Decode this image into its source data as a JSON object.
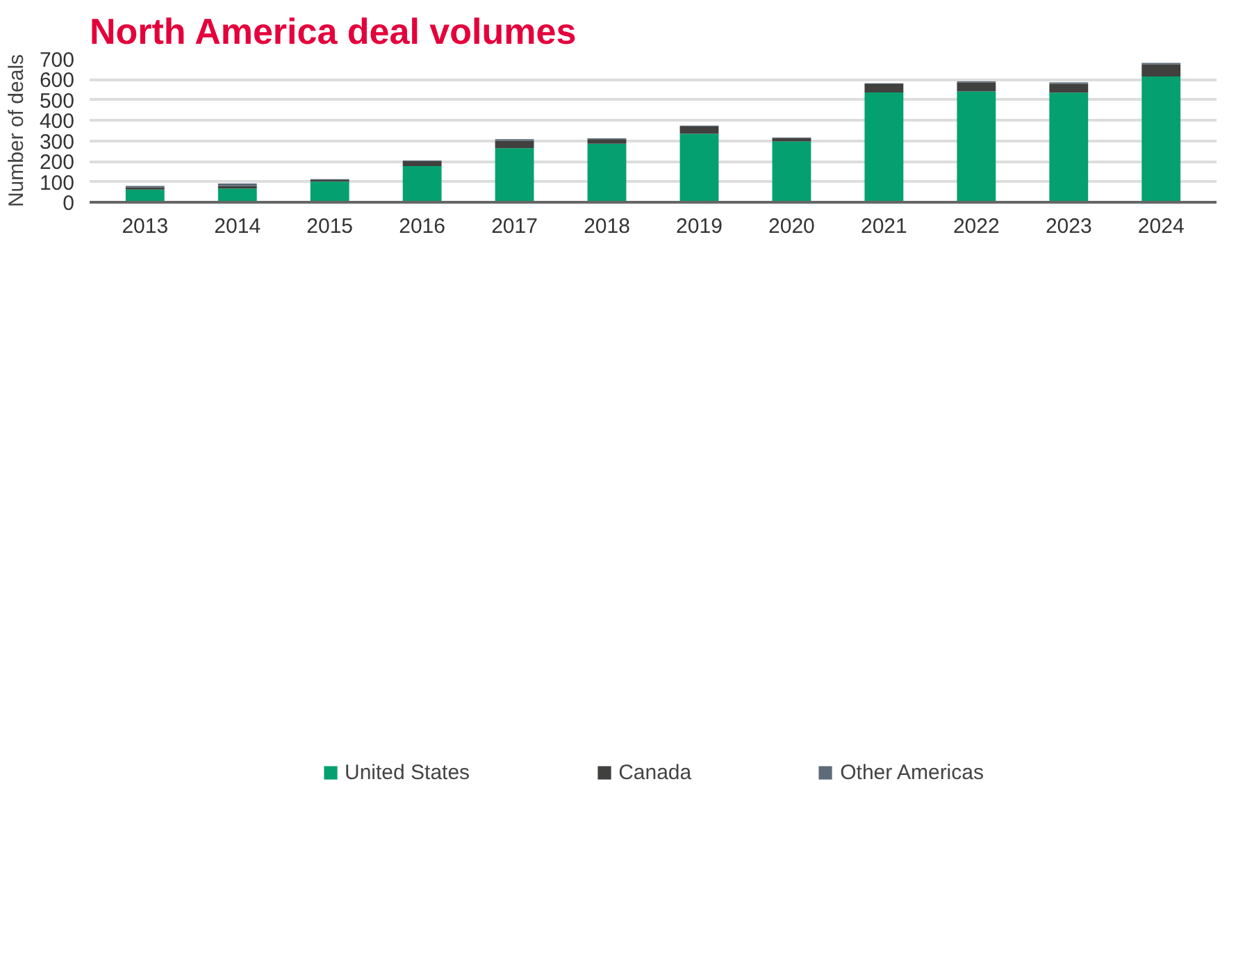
{
  "chart_data": {
    "type": "bar",
    "title": "North America deal volumes",
    "ylabel": "Number of deals",
    "categories": [
      "2013",
      "2014",
      "2015",
      "2016",
      "2017",
      "2018",
      "2019",
      "2020",
      "2021",
      "2022",
      "2023",
      "2024"
    ],
    "stacked": true,
    "series": [
      {
        "name": "United States",
        "color": "#05a06f",
        "values": [
          62,
          67,
          101,
          177,
          264,
          286,
          335,
          297,
          537,
          542,
          536,
          615
        ]
      },
      {
        "name": "Canada",
        "color": "#40403e",
        "values": [
          11,
          12,
          8,
          24,
          36,
          22,
          35,
          17,
          41,
          43,
          43,
          59
        ]
      },
      {
        "name": "Other Americas",
        "color": "#5d6b78",
        "values": [
          7,
          13,
          4,
          4,
          8,
          5,
          5,
          3,
          4,
          6,
          7,
          7
        ]
      }
    ],
    "ylim": [
      0,
      700
    ],
    "yticks": [
      0,
      100,
      200,
      300,
      400,
      500,
      600,
      700
    ],
    "grid": "y",
    "legend": "bottom"
  }
}
